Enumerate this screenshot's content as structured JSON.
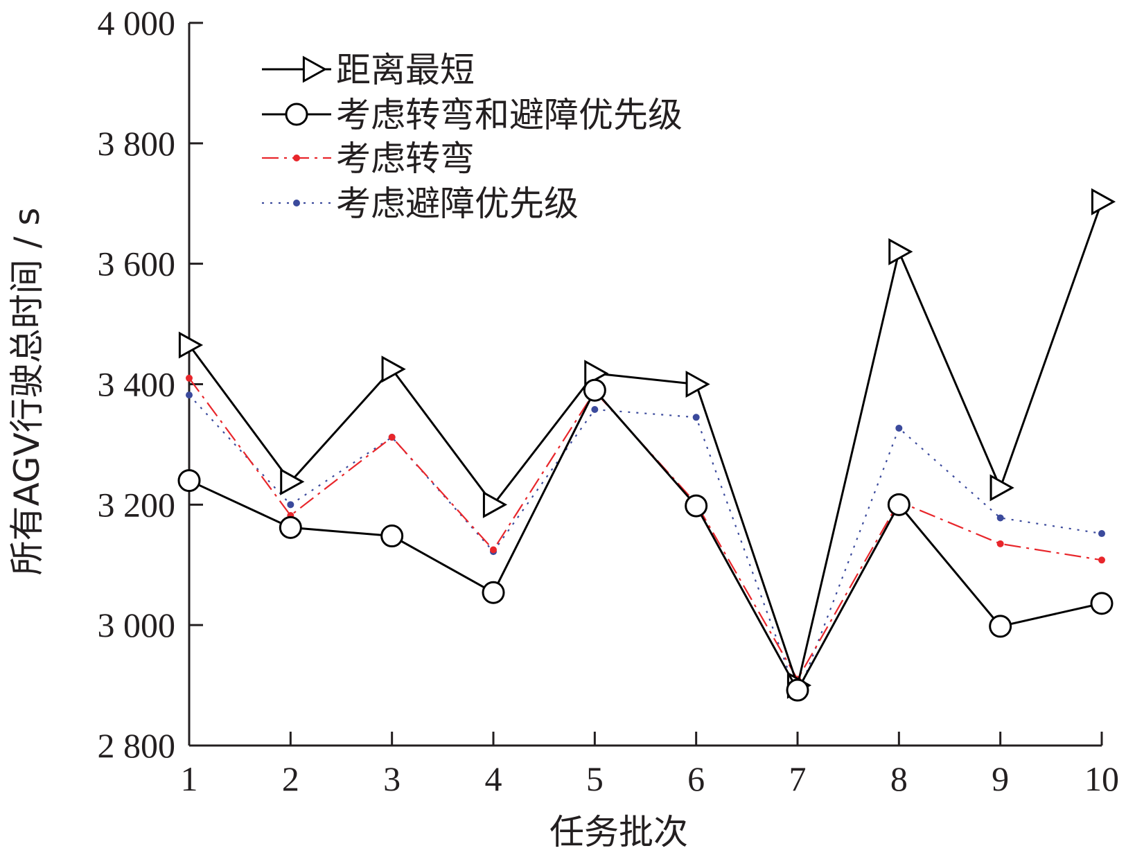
{
  "chart_data": {
    "type": "line",
    "title": "",
    "xlabel": "任务批次",
    "ylabel": "所有AGV行驶总时间 / s",
    "x": [
      1,
      2,
      3,
      4,
      5,
      6,
      7,
      8,
      9,
      10
    ],
    "xticks": [
      "1",
      "2",
      "3",
      "4",
      "5",
      "6",
      "7",
      "8",
      "9",
      "10"
    ],
    "ylim": [
      2800,
      4000
    ],
    "yticks": [
      "2 800",
      "3 000",
      "3 200",
      "3 400",
      "3 600",
      "3 800",
      "4 000"
    ],
    "grid": false,
    "legend_position": "top-left",
    "series": [
      {
        "name": "距离最短",
        "values": [
          3465,
          3238,
          3425,
          3200,
          3418,
          3400,
          2900,
          3620,
          3228,
          3703
        ],
        "color": "#000000",
        "style": "solid",
        "marker": "triangle-right"
      },
      {
        "name": "考虑转弯和避障优先级",
        "values": [
          3240,
          3162,
          3148,
          3054,
          3390,
          3198,
          2892,
          3200,
          2998,
          3036
        ],
        "color": "#000000",
        "style": "solid",
        "marker": "circle"
      },
      {
        "name": "考虑转弯",
        "values": [
          3410,
          3182,
          3312,
          3125,
          3388,
          3202,
          2910,
          3205,
          3135,
          3108
        ],
        "color": "#e8262b",
        "style": "dash-dot",
        "marker": "dot"
      },
      {
        "name": "考虑避障优先级",
        "values": [
          3382,
          3200,
          3312,
          3122,
          3358,
          3345,
          2882,
          3327,
          3178,
          3152
        ],
        "color": "#3b4a9c",
        "style": "dotted",
        "marker": "dot"
      }
    ]
  }
}
